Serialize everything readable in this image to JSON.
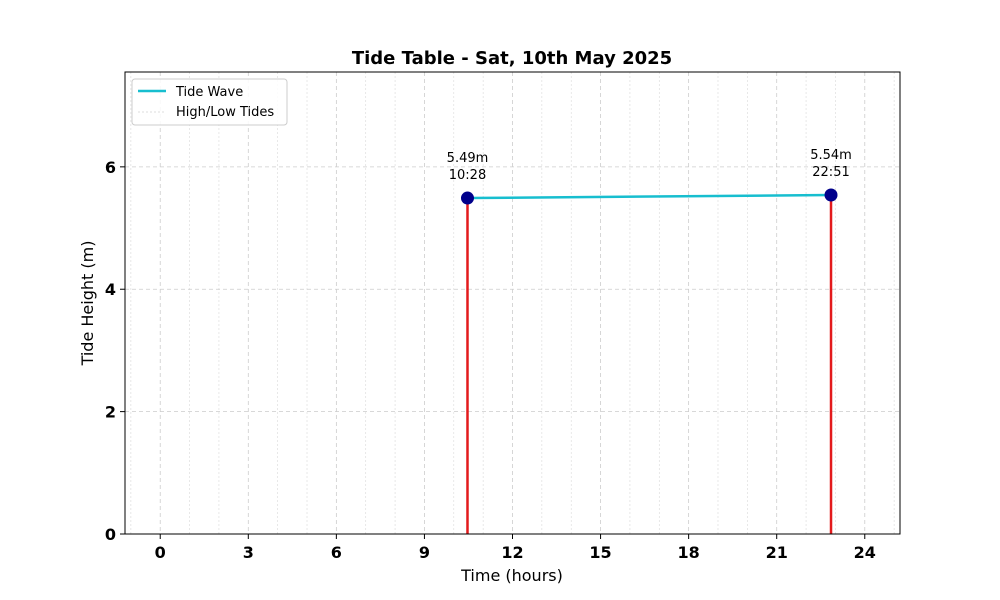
{
  "chart_data": {
    "type": "line",
    "title": "Tide Table - Sat, 10th May 2025",
    "xlabel": "Time (hours)",
    "ylabel": "Tide Height (m)",
    "xlim": [
      -1.2,
      25.2
    ],
    "ylim": [
      0,
      7.55
    ],
    "xticks": [
      0,
      3,
      6,
      9,
      12,
      15,
      18,
      21,
      24
    ],
    "yticks": [
      0,
      2,
      4,
      6
    ],
    "x_minor_grid_step": 1,
    "grid": true,
    "legend": {
      "placement": "top-left",
      "entries": [
        "Tide Wave",
        "High/Low Tides"
      ]
    },
    "series": [
      {
        "name": "Tide Wave",
        "color": "#17becf",
        "points": [
          {
            "x": 10.4667,
            "y": 5.49
          },
          {
            "x": 22.85,
            "y": 5.54
          }
        ]
      }
    ],
    "markers": {
      "name": "High/Low Tides",
      "marker_color": "#00008b",
      "stem_color": "#e31a1c",
      "points": [
        {
          "x": 10.4667,
          "y": 5.49,
          "label_height": "5.49m",
          "label_time": "10:28"
        },
        {
          "x": 22.85,
          "y": 5.54,
          "label_height": "5.54m",
          "label_time": "22:51"
        }
      ]
    }
  }
}
